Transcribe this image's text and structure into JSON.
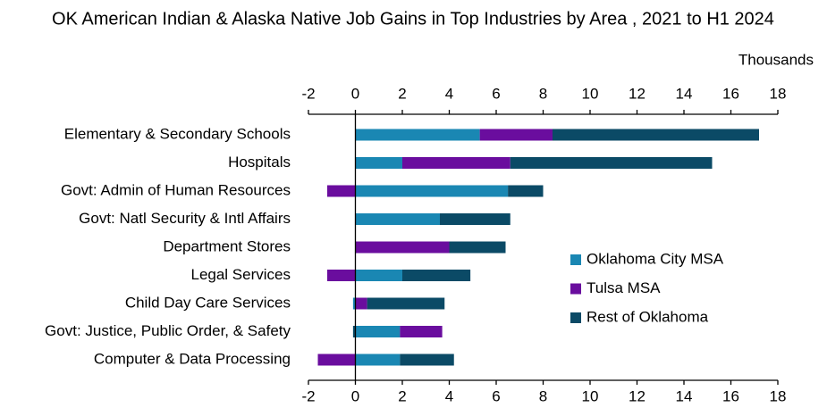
{
  "chart_data": {
    "type": "bar",
    "orientation": "horizontal",
    "stacked": true,
    "title": "OK American Indian & Alaska Native Job Gains in Top Industries by Area , 2021 to H1 2024",
    "x_label": "Thousands",
    "categories": [
      "Elementary & Secondary Schools",
      "Hospitals",
      "Govt: Admin of Human Resources",
      "Govt: Natl Security & Intl Affairs",
      "Department Stores",
      "Legal Services",
      "Child Day Care Services",
      "Govt: Justice, Public Order, & Safety",
      "Computer & Data Processing"
    ],
    "series": [
      {
        "name": "Oklahoma City MSA",
        "color": "#1a87b3",
        "values": [
          5.3,
          2.0,
          6.5,
          3.6,
          0,
          2.0,
          -0.1,
          1.9,
          1.9
        ]
      },
      {
        "name": "Tulsa MSA",
        "color": "#6a0d9e",
        "values": [
          3.1,
          4.6,
          -1.2,
          0,
          4.0,
          -1.2,
          0.5,
          1.8,
          -1.6
        ]
      },
      {
        "name": "Rest of Oklahoma",
        "color": "#0b4a66",
        "values": [
          8.8,
          8.6,
          1.5,
          3.0,
          2.4,
          2.9,
          3.3,
          -0.1,
          2.3
        ]
      }
    ],
    "xlim": [
      -2,
      18
    ],
    "xticks": [
      -2,
      0,
      2,
      4,
      6,
      8,
      10,
      12,
      14,
      16,
      18
    ],
    "legend": "right"
  }
}
